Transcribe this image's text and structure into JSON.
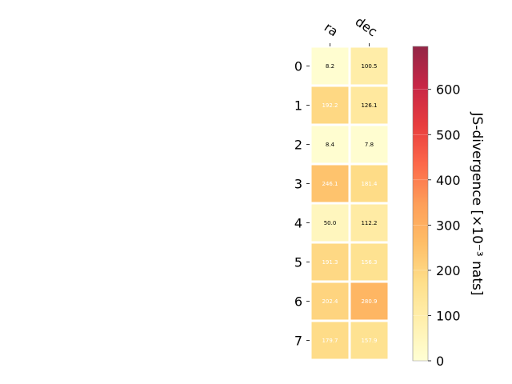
{
  "chart_data": {
    "type": "heatmap",
    "columns": [
      "ra",
      "dec"
    ],
    "rows": [
      "0",
      "1",
      "2",
      "3",
      "4",
      "5",
      "6",
      "7"
    ],
    "values": [
      [
        8.2,
        100.5
      ],
      [
        192.2,
        126.1
      ],
      [
        8.4,
        7.8
      ],
      [
        246.1,
        181.4
      ],
      [
        50.0,
        112.2
      ],
      [
        191.3,
        156.3
      ],
      [
        202.4,
        280.9
      ],
      [
        179.7,
        157.9
      ]
    ],
    "cell_labels": [
      [
        "8.2",
        "100.5"
      ],
      [
        "192.2",
        "126.1"
      ],
      [
        "8.4",
        "7.8"
      ],
      [
        "246.1",
        "181.4"
      ],
      [
        "50.0",
        "112.2"
      ],
      [
        "191.3",
        "156.3"
      ],
      [
        "202.4",
        "280.9"
      ],
      [
        "179.7",
        "157.9"
      ]
    ],
    "colorbar": {
      "label": "JS-divergence [×10⁻³ nats]",
      "range": [
        0,
        695
      ],
      "ticks": [
        "0",
        "100",
        "200",
        "300",
        "400",
        "500",
        "600"
      ],
      "colormap": "YlOrRd"
    },
    "grid": false
  }
}
